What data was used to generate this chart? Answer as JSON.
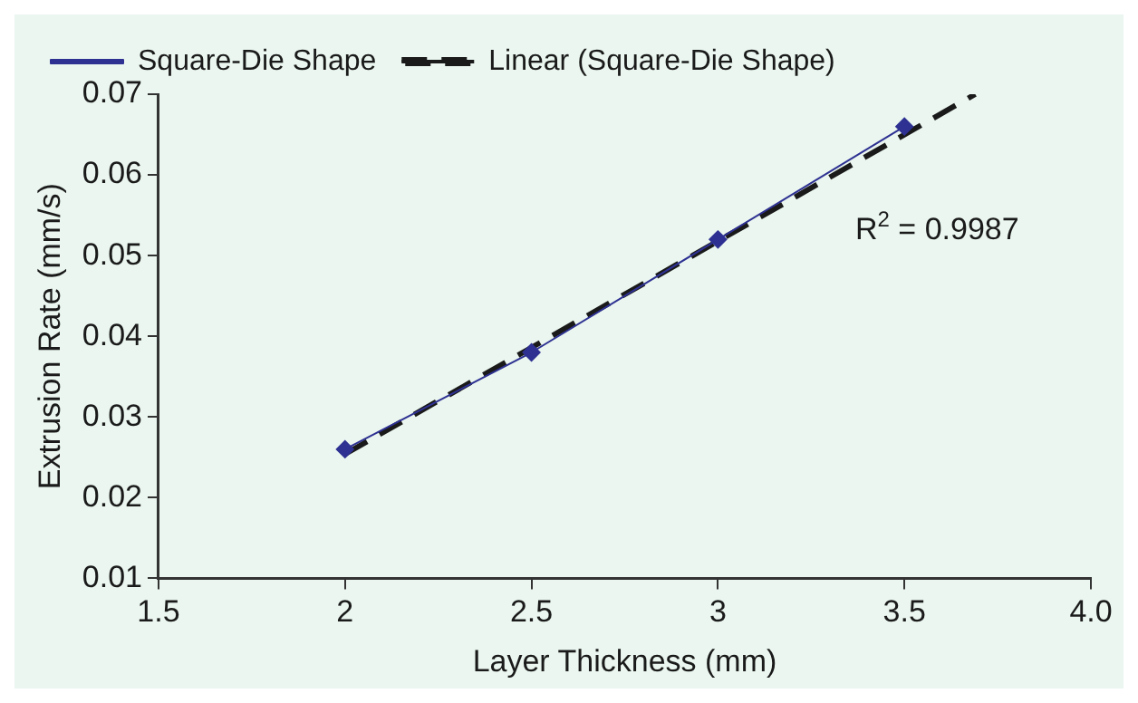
{
  "chart_data": {
    "type": "line",
    "xlabel": "Layer Thickness (mm)",
    "ylabel": "Extrusion Rate (mm/s)",
    "x": [
      2,
      2.5,
      3,
      3.5
    ],
    "series": [
      {
        "name": "Square-Die Shape",
        "color": "#2e3192",
        "values": [
          0.026,
          0.038,
          0.052,
          0.066
        ],
        "marker": "diamond",
        "line_style": "solid"
      },
      {
        "name": "Linear (Square-Die Shape)",
        "color": "#1a1a1a",
        "type": "line",
        "x": [
          2,
          3.69
        ],
        "values": [
          0.0254,
          0.07
        ],
        "marker": "none",
        "line_style": "dashed"
      }
    ],
    "xlim": [
      1.5,
      4.0
    ],
    "xticks": [
      1.5,
      2,
      2.5,
      3,
      3.5,
      {
        "value": 4,
        "label": "4.0"
      }
    ],
    "ylim": [
      0.01,
      0.07
    ],
    "yticks": [
      0.01,
      0.02,
      0.03,
      0.04,
      0.05,
      0.06,
      0.07
    ],
    "grid": false,
    "legend": "top left",
    "annotations": [
      "R$^{2}$ = 0.9987"
    ]
  }
}
